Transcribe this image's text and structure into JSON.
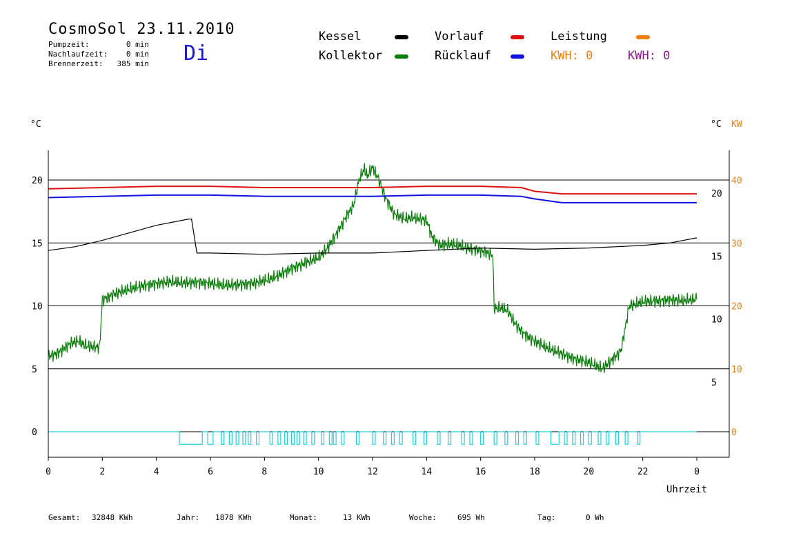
{
  "header": {
    "title": "CosmoSol 23.11.2010",
    "weekday": "Di",
    "stats": [
      {
        "label": "Pumpzeit:",
        "value": "0 min"
      },
      {
        "label": "Nachlaufzeit:",
        "value": "0 min"
      },
      {
        "label": "Brennerzeit:",
        "value": "385 min"
      }
    ]
  },
  "legend": {
    "kessel": {
      "label": "Kessel",
      "color": "#000000"
    },
    "kollektor": {
      "label": "Kollektor",
      "color": "#0a7d0a"
    },
    "vorlauf": {
      "label": "Vorlauf",
      "color": "#e01010"
    },
    "ruecklauf": {
      "label": "Rücklauf",
      "color": "#1010e0"
    },
    "leistung": {
      "label": "Leistung",
      "color": "#f08010"
    },
    "kwh1": {
      "label": "KWH: 0",
      "color": "#f08010"
    },
    "kwh2": {
      "label": "KWH: 0",
      "color": "#8a1a8a"
    }
  },
  "footer": [
    {
      "label": "Gesamt:",
      "value": "32848 KWh"
    },
    {
      "label": "Jahr:",
      "value": "1878 KWh"
    },
    {
      "label": "Monat:",
      "value": "13 KWh"
    },
    {
      "label": "Woche:",
      "value": "695 Wh"
    },
    {
      "label": "Tag:",
      "value": "0 Wh"
    }
  ],
  "chart_data": {
    "type": "line",
    "xlabel": "Uhrzeit",
    "ylabel_left": "°C",
    "ylabel_right": "°C",
    "ylabel_right2": "KW",
    "x_ticks": [
      "0",
      "2",
      "4",
      "6",
      "8",
      "10",
      "12",
      "14",
      "16",
      "18",
      "20",
      "22",
      "0"
    ],
    "x_range": [
      0,
      24
    ],
    "y_left_ticks": [
      "0",
      "5",
      "10",
      "15",
      "20"
    ],
    "y_right_ticks": [
      "5",
      "10",
      "15",
      "20"
    ],
    "y_kw_ticks": [
      "0",
      "10",
      "20",
      "30",
      "40"
    ],
    "y_range": [
      -2,
      22.5
    ],
    "grid_y": [
      5,
      10,
      15,
      20
    ],
    "series": [
      {
        "name": "Kollektor",
        "color": "#0a7d0a",
        "x": [
          0,
          0.3,
          0.5,
          0.8,
          1.1,
          1.4,
          1.9,
          2.0,
          2.5,
          3.0,
          3.5,
          4.0,
          4.5,
          5.0,
          5.5,
          6.0,
          6.5,
          7.0,
          7.5,
          7.8,
          8.2,
          8.6,
          9.0,
          9.5,
          10.0,
          10.3,
          10.6,
          11.0,
          11.3,
          11.5,
          11.7,
          11.8,
          12.0,
          12.2,
          12.5,
          12.8,
          13.2,
          13.5,
          14.0,
          14.2,
          14.5,
          14.8,
          15.2,
          15.5,
          16.0,
          16.3,
          16.45,
          16.5,
          16.8,
          17.0,
          17.3,
          17.6,
          18.0,
          18.5,
          19.0,
          19.5,
          20.0,
          20.5,
          20.8,
          21.0,
          21.2,
          21.5,
          22.0,
          22.5,
          23.0,
          23.5,
          24.0
        ],
        "y": [
          6,
          6.2,
          6.5,
          7,
          7.2,
          6.8,
          6.7,
          10.5,
          11,
          11.3,
          11.6,
          11.8,
          11.9,
          11.8,
          11.9,
          11.8,
          11.6,
          11.7,
          11.8,
          11.9,
          12.1,
          12.5,
          13,
          13.4,
          13.8,
          14.5,
          15.5,
          17,
          18,
          20,
          20.9,
          20.3,
          21,
          20.2,
          18.5,
          17.3,
          16.9,
          17,
          16.8,
          15.5,
          14.8,
          14.9,
          14.8,
          14.6,
          14.4,
          14.2,
          14,
          9.8,
          9.8,
          9.6,
          8.5,
          7.8,
          7.2,
          6.6,
          6.2,
          5.8,
          5.5,
          5.0,
          5.6,
          6.0,
          6.5,
          10,
          10.3,
          10.4,
          10.5,
          10.4,
          10.5
        ]
      },
      {
        "name": "Kessel",
        "color": "#000000",
        "x": [
          0,
          1,
          2,
          3,
          4,
          5.2,
          5.3,
          5.5,
          6,
          8,
          10,
          12,
          14,
          16,
          18,
          20,
          22,
          23,
          24
        ],
        "y": [
          14.4,
          14.7,
          15.2,
          15.8,
          16.4,
          16.9,
          16.9,
          14.2,
          14.2,
          14.1,
          14.2,
          14.2,
          14.4,
          14.6,
          14.5,
          14.6,
          14.8,
          15,
          15.4
        ]
      },
      {
        "name": "Vorlauf",
        "color": "#e01010",
        "x": [
          0,
          2,
          4,
          6,
          8,
          10,
          12,
          14,
          16,
          17.5,
          18,
          19,
          20,
          22,
          24
        ],
        "y": [
          19.3,
          19.4,
          19.5,
          19.5,
          19.4,
          19.4,
          19.4,
          19.5,
          19.5,
          19.4,
          19.1,
          18.9,
          18.9,
          18.9,
          18.9
        ]
      },
      {
        "name": "Rücklauf",
        "color": "#1010e0",
        "x": [
          0,
          2,
          4,
          6,
          8,
          10,
          12,
          14,
          16,
          17.5,
          18,
          19,
          20,
          22,
          24
        ],
        "y": [
          18.6,
          18.7,
          18.8,
          18.8,
          18.7,
          18.7,
          18.7,
          18.8,
          18.8,
          18.7,
          18.5,
          18.2,
          18.2,
          18.2,
          18.2
        ]
      }
    ],
    "pump_color": "#20d0e0",
    "pump_baseline": 0,
    "pump_low": -1,
    "pump_pulses": [
      [
        4.85,
        5.7
      ],
      [
        5.9,
        6.1
      ],
      [
        6.4,
        6.5
      ],
      [
        6.7,
        6.8
      ],
      [
        6.95,
        7.05
      ],
      [
        7.2,
        7.3
      ],
      [
        7.4,
        7.5
      ],
      [
        7.7,
        7.8
      ],
      [
        8.2,
        8.3
      ],
      [
        8.5,
        8.6
      ],
      [
        8.75,
        8.85
      ],
      [
        9.0,
        9.1
      ],
      [
        9.2,
        9.3
      ],
      [
        9.45,
        9.55
      ],
      [
        9.75,
        9.85
      ],
      [
        10.1,
        10.2
      ],
      [
        10.4,
        10.5
      ],
      [
        10.55,
        10.65
      ],
      [
        10.85,
        10.95
      ],
      [
        11.4,
        11.5
      ],
      [
        12.0,
        12.1
      ],
      [
        12.4,
        12.5
      ],
      [
        12.7,
        12.8
      ],
      [
        13.0,
        13.1
      ],
      [
        13.5,
        13.6
      ],
      [
        13.9,
        14.0
      ],
      [
        14.4,
        14.5
      ],
      [
        14.8,
        14.9
      ],
      [
        15.3,
        15.4
      ],
      [
        15.6,
        15.7
      ],
      [
        16.0,
        16.1
      ],
      [
        16.5,
        16.6
      ],
      [
        16.9,
        17.0
      ],
      [
        17.3,
        17.4
      ],
      [
        17.6,
        17.7
      ],
      [
        18.05,
        18.15
      ],
      [
        18.6,
        18.9
      ],
      [
        19.1,
        19.2
      ],
      [
        19.4,
        19.5
      ],
      [
        19.7,
        19.8
      ],
      [
        20.0,
        20.1
      ],
      [
        20.35,
        20.45
      ],
      [
        20.65,
        20.75
      ],
      [
        21.0,
        21.1
      ],
      [
        21.35,
        21.45
      ],
      [
        21.8,
        21.9
      ]
    ]
  }
}
